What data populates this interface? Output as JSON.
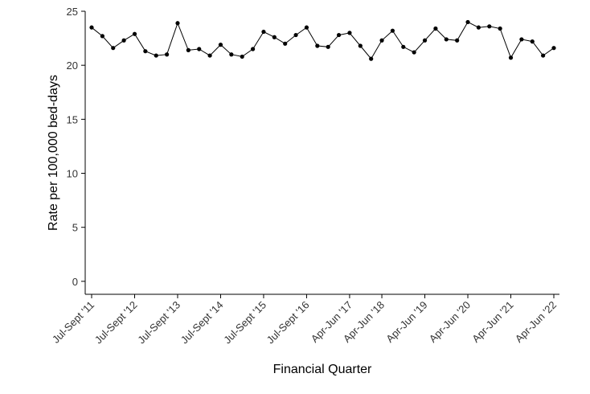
{
  "chart_data": {
    "type": "line",
    "xlabel": "Financial Quarter",
    "ylabel": "Rate per 100,000 bed-days",
    "ylim": [
      -1.2,
      25
    ],
    "yticks": [
      0,
      5,
      10,
      15,
      20,
      25
    ],
    "grid": false,
    "legend": "none",
    "x_tick_labels": [
      {
        "index": 0,
        "label": "Jul-Sept '11"
      },
      {
        "index": 4,
        "label": "Jul-Sept '12"
      },
      {
        "index": 8,
        "label": "Jul-Sept '13"
      },
      {
        "index": 12,
        "label": "Jul-Sept '14"
      },
      {
        "index": 16,
        "label": "Jul-Sept '15"
      },
      {
        "index": 20,
        "label": "Jul-Sept '16"
      },
      {
        "index": 24,
        "label": "Apr-Jun '17"
      },
      {
        "index": 27,
        "label": "Apr-Jun '18"
      },
      {
        "index": 31,
        "label": "Apr-Jun '19"
      },
      {
        "index": 35,
        "label": "Apr-Jun '20"
      },
      {
        "index": 39,
        "label": "Apr-Jun '21"
      },
      {
        "index": 43,
        "label": "Apr-Jun '22"
      }
    ],
    "values": [
      23.5,
      22.7,
      21.6,
      22.3,
      22.9,
      21.3,
      20.9,
      21.0,
      23.9,
      21.4,
      21.5,
      20.9,
      21.9,
      21.0,
      20.8,
      21.5,
      23.1,
      22.6,
      22.0,
      22.8,
      23.5,
      21.8,
      21.7,
      22.8,
      23.0,
      21.8,
      20.6,
      22.3,
      23.2,
      21.7,
      21.2,
      22.3,
      23.4,
      22.4,
      22.3,
      24.0,
      23.5,
      23.6,
      23.4,
      20.7,
      22.4,
      22.2,
      20.9,
      21.6
    ],
    "colors": {
      "line": "#000000",
      "axis": "#000000",
      "text": "#333333"
    }
  }
}
